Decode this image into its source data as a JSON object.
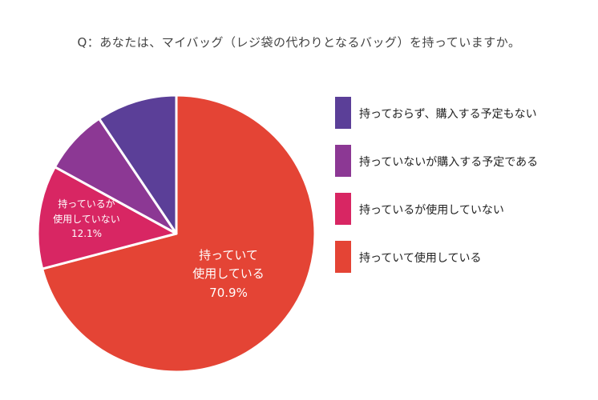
{
  "title": "Q：あなたは、マイバッグ（レジ袋の代わりとなるバッグ）を持っていますか。",
  "chart_data": {
    "type": "pie",
    "title": "Q：あなたは、マイバッグ（レジ袋の代わりとなるバッグ）を持っていますか。",
    "legend_position": "right",
    "slices": [
      {
        "label": "持っていて使用している",
        "value": 70.9,
        "color": "#e44435",
        "label_lines": [
          "持っていて",
          "使用している",
          "70.9%"
        ]
      },
      {
        "label": "持っているが使用していない",
        "value": 12.1,
        "color": "#d82663",
        "label_lines": [
          "持っているが",
          "使用していない",
          "12.1%"
        ]
      },
      {
        "label": "持っていないが購入する予定である",
        "value": 7.6,
        "color": "#8c3894",
        "label_lines": []
      },
      {
        "label": "持っておらず、購入する予定もない",
        "value": 9.4,
        "color": "#5b3f98",
        "label_lines": []
      }
    ],
    "legend_order": [
      3,
      2,
      1,
      0
    ]
  }
}
